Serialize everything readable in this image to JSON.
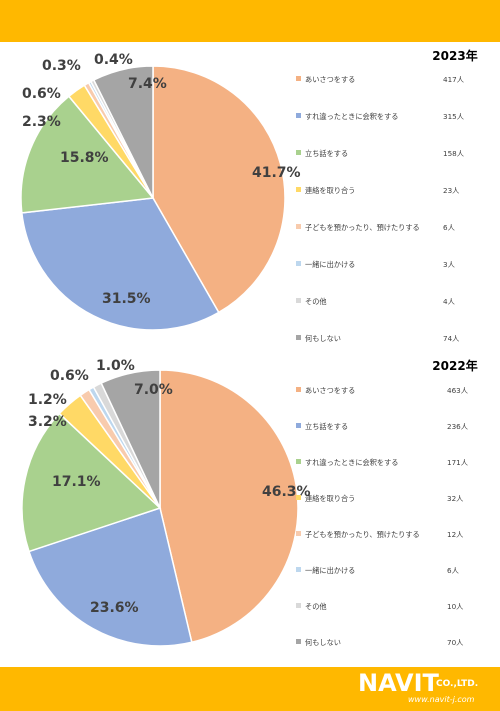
{
  "brand": {
    "name": "NAVIT",
    "co": "CO.,LTD.",
    "url": "www.navit-j.com"
  },
  "colors": {
    "accent": "#ffb800"
  },
  "chart_data": [
    {
      "type": "pie",
      "title": "2023年",
      "legend_position": "right",
      "slices": [
        {
          "label": "あいさつをする",
          "count": "417人",
          "value": 41.7,
          "pct_label": "41.7%",
          "color": "#f4b183"
        },
        {
          "label": "すれ違ったときに会釈をする",
          "count": "315人",
          "value": 31.5,
          "pct_label": "31.5%",
          "color": "#8faadc"
        },
        {
          "label": "立ち話をする",
          "count": "158人",
          "value": 15.8,
          "pct_label": "15.8%",
          "color": "#a9d18e"
        },
        {
          "label": "連絡を取り合う",
          "count": "23人",
          "value": 2.3,
          "pct_label": "2.3%",
          "color": "#ffd966"
        },
        {
          "label": "子どもを預かったり、預けたりする",
          "count": "6人",
          "value": 0.6,
          "pct_label": "0.6%",
          "color": "#f8cbad"
        },
        {
          "label": "一緒に出かける",
          "count": "3人",
          "value": 0.3,
          "pct_label": "0.3%",
          "color": "#bdd7ee"
        },
        {
          "label": "その他",
          "count": "4人",
          "value": 0.4,
          "pct_label": "0.4%",
          "color": "#d9d9d9"
        },
        {
          "label": "何もしない",
          "count": "74人",
          "value": 7.4,
          "pct_label": "7.4%",
          "color": "#a5a5a5"
        }
      ]
    },
    {
      "type": "pie",
      "title": "2022年",
      "legend_position": "right",
      "slices": [
        {
          "label": "あいさつをする",
          "count": "463人",
          "value": 46.3,
          "pct_label": "46.3%",
          "color": "#f4b183"
        },
        {
          "label": "立ち話をする",
          "count": "236人",
          "value": 23.6,
          "pct_label": "23.6%",
          "color": "#8faadc"
        },
        {
          "label": "すれ違ったときに会釈をする",
          "count": "171人",
          "value": 17.1,
          "pct_label": "17.1%",
          "color": "#a9d18e"
        },
        {
          "label": "連絡を取り合う",
          "count": "32人",
          "value": 3.2,
          "pct_label": "3.2%",
          "color": "#ffd966"
        },
        {
          "label": "子どもを預かったり、預けたりする",
          "count": "12人",
          "value": 1.2,
          "pct_label": "1.2%",
          "color": "#f8cbad"
        },
        {
          "label": "一緒に出かける",
          "count": "6人",
          "value": 0.6,
          "pct_label": "0.6%",
          "color": "#bdd7ee"
        },
        {
          "label": "その他",
          "count": "10人",
          "value": 1.0,
          "pct_label": "1.0%",
          "color": "#d9d9d9"
        },
        {
          "label": "何もしない",
          "count": "70人",
          "value": 7.0,
          "pct_label": "7.0%",
          "color": "#a5a5a5"
        }
      ]
    }
  ]
}
